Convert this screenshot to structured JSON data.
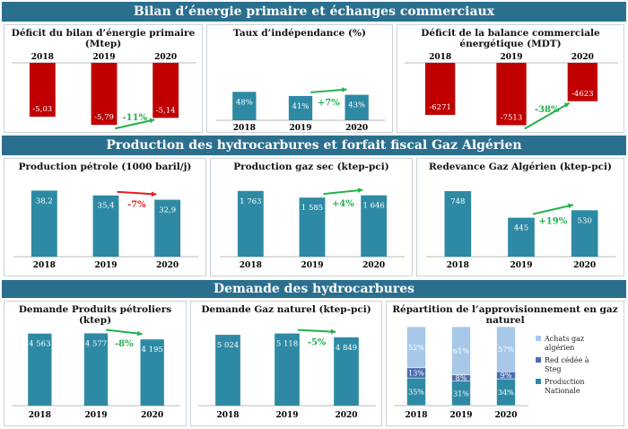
{
  "sections": [
    "Bilan d’énergie primaire et échanges commerciaux",
    "Production des hydrocarbures et forfait fiscal Gaz Algérien",
    "Demande des hydrocarbures"
  ],
  "colors": {
    "teal": "#2e8aa4",
    "red": "#c00000",
    "green": "#22b14c",
    "arrow_red": "#e02020",
    "purple": "#4a6fb0",
    "light_blue": "#a7c8e8",
    "banner": "#2b6f8e"
  },
  "chart_data": [
    {
      "type": "bar",
      "title": "Déficit du bilan d’énergie primaire (Mtep)",
      "categories": [
        "2018",
        "2019",
        "2020"
      ],
      "values": [
        -5.03,
        -5.79,
        -5.14
      ],
      "labels": [
        "-5,03",
        "-5,79",
        "-5,14"
      ],
      "ylim": [
        -6.2,
        0
      ],
      "color": "#c00000",
      "annotation": {
        "text": "-11%",
        "color": "#22b14c",
        "from": 1,
        "to": 2
      }
    },
    {
      "type": "bar",
      "title": "Taux d’indépendance (%)",
      "categories": [
        "2018",
        "2019",
        "2020"
      ],
      "values": [
        48,
        41,
        43
      ],
      "labels": [
        "48%",
        "41%",
        "43%"
      ],
      "ylim": [
        0,
        100
      ],
      "color": "#2e8aa4",
      "annotation": {
        "text": "+7%",
        "color": "#22b14c",
        "from": 1,
        "to": 2
      }
    },
    {
      "type": "bar",
      "title": "Déficit de la balance commerciale énergétique (MDT)",
      "categories": [
        "2018",
        "2019",
        "2020"
      ],
      "values": [
        -6271,
        -7513,
        -4623
      ],
      "labels": [
        "-6271",
        "-7513",
        "-4623"
      ],
      "ylim": [
        -8000,
        0
      ],
      "color": "#c00000",
      "annotation": {
        "text": "-38%",
        "color": "#22b14c",
        "from": 1,
        "to": 2
      }
    },
    {
      "type": "bar",
      "title": "Production pétrole (1000 baril/j)",
      "categories": [
        "2018",
        "2019",
        "2020"
      ],
      "values": [
        38.2,
        35.4,
        32.9
      ],
      "labels": [
        "38,2",
        "35,4",
        "32,9"
      ],
      "ylim": [
        0,
        42
      ],
      "color": "#2e8aa4",
      "annotation": {
        "text": "-7%",
        "color": "#e02020",
        "from": 1,
        "to": 2
      }
    },
    {
      "type": "bar",
      "title": "Production gaz sec (ktep-pci)",
      "categories": [
        "2018",
        "2019",
        "2020"
      ],
      "values": [
        1763,
        1585,
        1646
      ],
      "labels": [
        "1 763",
        "1 585",
        "1 646"
      ],
      "ylim": [
        0,
        1950
      ],
      "color": "#2e8aa4",
      "annotation": {
        "text": "+4%",
        "color": "#22b14c",
        "from": 1,
        "to": 2
      }
    },
    {
      "type": "bar",
      "title": "Redevance Gaz Algérien (ktep-pci)",
      "categories": [
        "2018",
        "2019",
        "2020"
      ],
      "values": [
        748,
        445,
        530
      ],
      "labels": [
        "748",
        "445",
        "530"
      ],
      "ylim": [
        0,
        830
      ],
      "color": "#2e8aa4",
      "annotation": {
        "text": "+19%",
        "color": "#22b14c",
        "from": 1,
        "to": 2
      }
    },
    {
      "type": "bar",
      "title": "Demande Produits pétroliers (ktep)",
      "categories": [
        "2018",
        "2019",
        "2020"
      ],
      "values": [
        4563,
        4577,
        4195
      ],
      "labels": [
        "4 563",
        "4 577",
        "4 195"
      ],
      "ylim": [
        0,
        5000
      ],
      "color": "#2e8aa4",
      "annotation": {
        "text": "-8%",
        "color": "#22b14c",
        "from": 1,
        "to": 2
      }
    },
    {
      "type": "bar",
      "title": "Demande Gaz naturel (ktep-pci)",
      "categories": [
        "2018",
        "2019",
        "2020"
      ],
      "values": [
        5024,
        5118,
        4849
      ],
      "labels": [
        "5 024",
        "5 118",
        "4 849"
      ],
      "ylim": [
        0,
        5600
      ],
      "color": "#2e8aa4",
      "annotation": {
        "text": "-5%",
        "color": "#22b14c",
        "from": 1,
        "to": 2
      }
    },
    {
      "type": "bar",
      "stacked": true,
      "title": "Répartition de l’approvisionnement en gaz naturel",
      "categories": [
        "2018",
        "2019",
        "2020"
      ],
      "series": [
        {
          "name": "Production Nationale",
          "values": [
            35,
            31,
            34
          ],
          "labels": [
            "35%",
            "31%",
            "34%"
          ],
          "color": "#2e8aa4"
        },
        {
          "name": "Red cédée à Steg",
          "values": [
            13,
            8,
            9
          ],
          "labels": [
            "13%",
            "8%",
            "9%"
          ],
          "color": "#4a6fb0"
        },
        {
          "name": "Achats gaz algérien",
          "values": [
            52,
            61,
            57
          ],
          "labels": [
            "52%",
            "61%",
            "57%"
          ],
          "color": "#a7c8e8"
        }
      ],
      "ylim": [
        0,
        100
      ],
      "legend": "right"
    }
  ]
}
